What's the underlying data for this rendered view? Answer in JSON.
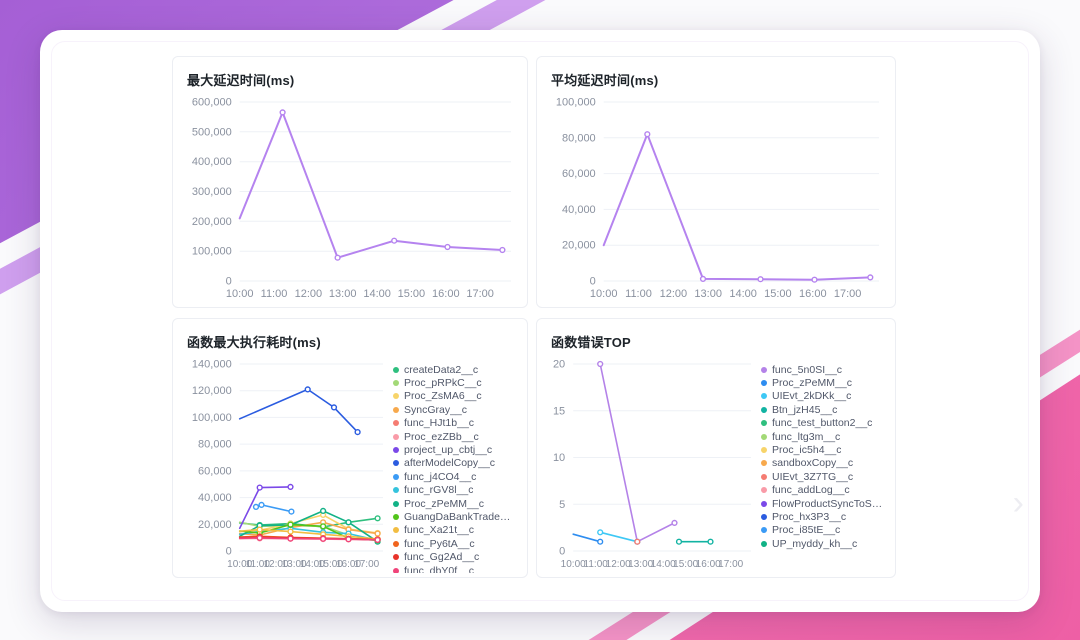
{
  "decor": {
    "purple_main_from": "#a55fd5",
    "purple_main_to": "#c28ceb",
    "purple_sliver": "#cf9fee",
    "pink_main_from": "#ee5fa5",
    "pink_main_to": "#f584bd",
    "pink_sliver": "#f493c6"
  },
  "carousel": {
    "next_icon": "›"
  },
  "chart_data": [
    {
      "type": "line",
      "title": "最大延迟时间(ms)",
      "ylim": [
        0,
        600000
      ],
      "y_step": 100000,
      "x_min": 10,
      "x_max": 17.9,
      "x_tick_labels": [
        "10:00",
        "11:00",
        "12:00",
        "13:00",
        "14:00",
        "15:00",
        "16:00",
        "17:00"
      ],
      "grid": true,
      "legend_position": null,
      "stroke_width": 2,
      "x_label_size": 11,
      "series": [
        {
          "color": "#b583ef",
          "x": [
            10.0,
            11.25,
            12.85,
            14.5,
            16.05,
            17.65
          ],
          "y": [
            210000,
            565000,
            78000,
            135000,
            114000,
            104000
          ]
        }
      ]
    },
    {
      "type": "line",
      "title": "平均延迟时间(ms)",
      "ylim": [
        0,
        100000
      ],
      "y_step": 20000,
      "x_min": 10,
      "x_max": 17.9,
      "x_tick_labels": [
        "10:00",
        "11:00",
        "12:00",
        "13:00",
        "14:00",
        "15:00",
        "16:00",
        "17:00"
      ],
      "grid": true,
      "legend_position": null,
      "stroke_width": 2,
      "x_label_size": 11,
      "series": [
        {
          "color": "#b583ef",
          "x": [
            10.0,
            11.25,
            12.85,
            14.5,
            16.05,
            17.65
          ],
          "y": [
            20000,
            82000,
            1200,
            1000,
            700,
            2000
          ]
        }
      ]
    },
    {
      "type": "line",
      "title": "函数最大执行耗时(ms)",
      "ylim": [
        0,
        140000
      ],
      "y_step": 20000,
      "x_min": 10,
      "x_max": 17.9,
      "x_tick_labels": [
        "10:00",
        "11:00",
        "12:00",
        "13:00",
        "14:00",
        "15:00",
        "16:00",
        "17:00"
      ],
      "grid": true,
      "legend_position": "right",
      "stroke_width": 1.6,
      "x_label_size": 10,
      "series": [
        {
          "name": "createData2__c",
          "color": "#2fbf7f",
          "x": [
            10,
            11.1,
            12.8,
            14.6,
            16.0,
            17.6
          ],
          "y": [
            21000,
            19500,
            20500,
            18000,
            21500,
            24500
          ]
        },
        {
          "name": "Proc_pRPkC__c",
          "color": "#a3d977",
          "x": [
            10,
            11.1,
            12.8,
            14.6,
            16.0
          ],
          "y": [
            21500,
            18500,
            19000,
            18500,
            12000
          ]
        },
        {
          "name": "Proc_ZsMA6__c",
          "color": "#f7d46a",
          "x": [
            10,
            11.1,
            12.8,
            14.6,
            16.0,
            17.6
          ],
          "y": [
            14500,
            15500,
            20500,
            27000,
            16500,
            13500
          ]
        },
        {
          "name": "SyncGray__c",
          "color": "#f7a94d",
          "x": [
            10,
            11.1,
            12.8,
            14.6,
            16.0,
            17.6
          ],
          "y": [
            13000,
            12000,
            17500,
            21500,
            16000,
            13000
          ]
        },
        {
          "name": "func_HJt1b__c",
          "color": "#f57c72",
          "x": [
            10,
            11.1,
            12.8,
            14.6,
            16.0,
            17.6
          ],
          "y": [
            9800,
            10200,
            9600,
            9300,
            9100,
            8900
          ]
        },
        {
          "name": "Proc_ezZBb__c",
          "color": "#f99ba8",
          "x": [
            10,
            11.1,
            12.8,
            14.6,
            16.0,
            17.6
          ],
          "y": [
            9200,
            9400,
            9100,
            8900,
            8700,
            8600
          ]
        },
        {
          "name": "project_up_cbtj__c",
          "color": "#7b49e8",
          "x": [
            10,
            11.1,
            12.8
          ],
          "y": [
            17000,
            47500,
            48000
          ]
        },
        {
          "name": "afterModelCopy__c",
          "color": "#2b5ce0",
          "x": [
            10,
            13.75,
            15.2,
            16.5
          ],
          "y": [
            99000,
            121000,
            107500,
            89000
          ]
        },
        {
          "name": "func_j4CO4__c",
          "color": "#3b9bf5",
          "x": [
            10.9,
            11.2,
            12.85
          ],
          "y": [
            33000,
            34500,
            29500
          ]
        },
        {
          "name": "func_rGV8l__c",
          "color": "#35c3dd",
          "x": [
            10,
            11.1,
            12.8,
            14.6,
            16.0,
            17.6
          ],
          "y": [
            12500,
            14500,
            17000,
            14000,
            13000,
            8000
          ]
        },
        {
          "name": "Proc_zPeMM__c",
          "color": "#12b286",
          "x": [
            10,
            11.1,
            12.8,
            14.6,
            16.0,
            17.6
          ],
          "y": [
            11000,
            19000,
            19500,
            30000,
            21500,
            7000
          ]
        },
        {
          "name": "GuangDaBankTradeRec...",
          "color": "#52c41a",
          "x": [
            10,
            11.1,
            12.8,
            14.6,
            16.0,
            17.6
          ],
          "y": [
            15000,
            13500,
            19800,
            18500,
            9500,
            8000
          ]
        },
        {
          "name": "func_Xa21t__c",
          "color": "#f2bd42",
          "x": [
            10,
            11.1,
            12.8,
            14.6,
            16.0,
            17.6
          ],
          "y": [
            14800,
            16000,
            14500,
            12500,
            11000,
            9000
          ]
        },
        {
          "name": "func_Py6tA__c",
          "color": "#f0641e",
          "x": [
            10,
            11.1,
            12.8,
            14.6,
            16.0,
            17.6
          ],
          "y": [
            10500,
            11000,
            10200,
            9600,
            9200,
            8600
          ]
        },
        {
          "name": "func_Gg2Ad__c",
          "color": "#e8332a",
          "x": [
            10,
            11.1,
            12.8,
            14.6,
            16.0,
            17.6
          ],
          "y": [
            10000,
            10400,
            9900,
            9400,
            9000,
            8400
          ]
        },
        {
          "name": "func_dbY0f__c",
          "color": "#f0447a",
          "x": [
            10,
            11.1,
            12.8,
            14.6,
            16.0,
            17.6
          ],
          "y": [
            9500,
            9800,
            9300,
            9100,
            8800,
            8300
          ]
        }
      ]
    },
    {
      "type": "line",
      "title": "函数错误TOP",
      "ylim": [
        0,
        20
      ],
      "y_step": 5,
      "x_min": 10,
      "x_max": 17.9,
      "x_tick_labels": [
        "10:00",
        "11:00",
        "12:00",
        "13:00",
        "14:00",
        "15:00",
        "16:00",
        "17:00"
      ],
      "grid": true,
      "legend_position": "right",
      "stroke_width": 1.6,
      "x_label_size": 10,
      "series": [
        {
          "name": "func_5n0SI__c",
          "color": "#b482e8",
          "x": [
            11.2,
            12.85,
            14.5
          ],
          "y": [
            20,
            1,
            3
          ]
        },
        {
          "name": "Proc_zPeMM__c",
          "color": "#2e8df0",
          "x": [
            10,
            11.2
          ],
          "y": [
            1.8,
            1
          ]
        },
        {
          "name": "UIEvt_2kDKk__c",
          "color": "#3ec8f5",
          "x": [
            11.2,
            12.85
          ],
          "y": [
            2,
            1
          ]
        },
        {
          "name": "Btn_jzH45__c",
          "color": "#12b3a2",
          "x": [
            14.7,
            16.1
          ],
          "y": [
            1,
            1
          ]
        },
        {
          "name": "func_test_button2__c",
          "color": "#2fbf7f",
          "x": [],
          "y": []
        },
        {
          "name": "func_ltg3m__c",
          "color": "#a3d977",
          "x": [],
          "y": []
        },
        {
          "name": "Proc_ic5h4__c",
          "color": "#f7d46a",
          "x": [],
          "y": []
        },
        {
          "name": "sandboxCopy__c",
          "color": "#f7a94d",
          "x": [],
          "y": []
        },
        {
          "name": "UIEvt_3Z7TG__c",
          "color": "#f57c72",
          "x": [
            12.85
          ],
          "y": [
            1
          ]
        },
        {
          "name": "func_addLog__c",
          "color": "#f99ba8",
          "x": [],
          "y": []
        },
        {
          "name": "FlowProductSyncToSand...",
          "color": "#7b49e8",
          "x": [],
          "y": []
        },
        {
          "name": "Proc_hx3P3__c",
          "color": "#2b5ce0",
          "x": [],
          "y": []
        },
        {
          "name": "Proc_i85tE__c",
          "color": "#3b9bf5",
          "x": [],
          "y": []
        },
        {
          "name": "UP_myddy_kh__c",
          "color": "#12b286",
          "x": [],
          "y": []
        }
      ]
    }
  ]
}
